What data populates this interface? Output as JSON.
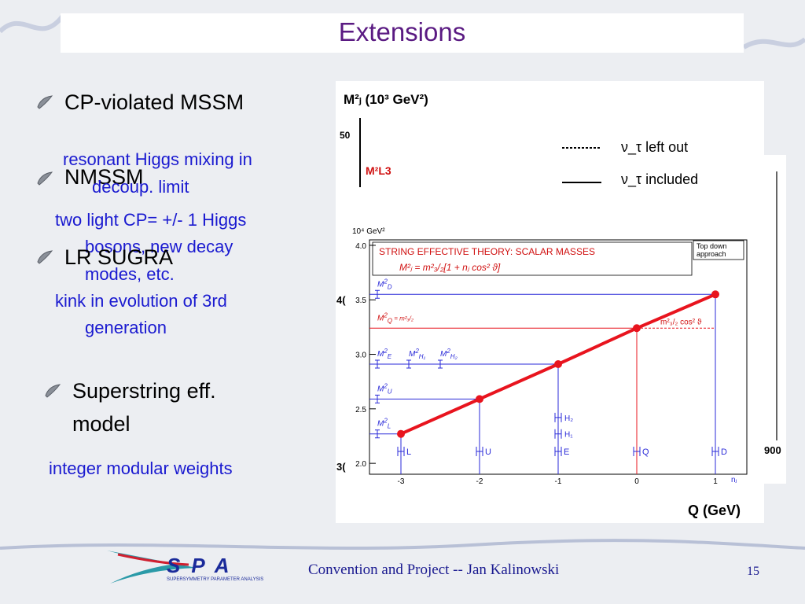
{
  "title": "Extensions",
  "bullets": [
    {
      "heading": [
        "CP-violated MSSM"
      ],
      "detail": [
        "resonant Higgs mixing in",
        "decoup. limit"
      ]
    },
    {
      "heading": [
        "NMSSM"
      ],
      "detail": [
        "two light CP= +/- 1 Higgs",
        "bosons, new decay",
        "modes, etc."
      ]
    },
    {
      "heading": [
        "LR SUGRA"
      ],
      "detail": [
        "kink in evolution of 3rd",
        "generation"
      ]
    },
    {
      "heading": [
        "Superstring eff.",
        "model"
      ],
      "detail": [
        "integer modular weights"
      ]
    }
  ],
  "footer": {
    "logo": "SPA",
    "logo_subtitle": "SUPERSYMMETRY PARAMETER ANALYSIS",
    "text": "Convention and Project -- Jan Kalinowski",
    "page": "15"
  },
  "back_figure": {
    "y_label": "M²ⱼ (10³ GeV²)",
    "tick_top": "50",
    "tick_mid": "4(",
    "tick_low": "3(",
    "tick_right": "900",
    "curve_label": "M²L3",
    "legend": [
      "ν_τ left out",
      "ν_τ included"
    ],
    "x_label": "Q (GeV)"
  },
  "chart_data": {
    "type": "line",
    "title": "STRING EFFECTIVE THEORY: SCALAR MASSES",
    "formula": "M²ⱼ = m²₃/₂[1 + nⱼ cos² ϑ]",
    "note": [
      "Top down",
      "approach"
    ],
    "y_unit": "10⁴ GeV²",
    "x_label": "nⱼ",
    "x": [
      -3,
      -2,
      -1,
      0,
      1
    ],
    "categories": [
      "L",
      "U",
      "E",
      "Q",
      "D"
    ],
    "values": [
      2.27,
      2.59,
      2.91,
      3.24,
      3.55
    ],
    "color": "#e8141e",
    "guide_color": "#2a2ad8",
    "highlight_index": 3,
    "xlim": [
      -3.4,
      1.4
    ],
    "xticks": [
      -3,
      -2,
      -1,
      0,
      1
    ],
    "ylim": [
      1.9,
      4.05
    ],
    "yticks": [
      {
        "value": 2,
        "label": "2.0"
      },
      2.5,
      {
        "value": 3,
        "label": "3.0"
      },
      3.5,
      {
        "value": 4,
        "label": "4.0"
      }
    ],
    "level_labels": [
      {
        "base": "M",
        "sup": "2",
        "sub": "D",
        "tail": "",
        "point": 4,
        "x": -3.3
      },
      {
        "base": "M",
        "sup": "2",
        "sub": "Q",
        "tail": " = m²₃/₂",
        "point": 3,
        "x": -3.3
      },
      {
        "base": "M",
        "sup": "2",
        "sub": "E",
        "tail": "",
        "point": 2,
        "x": -3.3
      },
      {
        "base": "M",
        "sup": "2",
        "sub": "H₁",
        "tail": "",
        "point": 2,
        "x": -2.9
      },
      {
        "base": "M",
        "sup": "2",
        "sub": "H₂",
        "tail": "",
        "point": 2,
        "x": -2.5
      },
      {
        "base": "M",
        "sup": "2",
        "sub": "U",
        "tail": "",
        "point": 1,
        "x": -3.3
      },
      {
        "base": "M",
        "sup": "2",
        "sub": "L",
        "tail": "",
        "point": 0,
        "x": -3.3
      }
    ],
    "dashed_label": "m²₃/₂ cos² ϑ",
    "annotations": [
      {
        "text": "H₂",
        "x": -1,
        "y": 2.42
      },
      {
        "text": "H₁",
        "x": -1,
        "y": 2.27
      }
    ]
  }
}
